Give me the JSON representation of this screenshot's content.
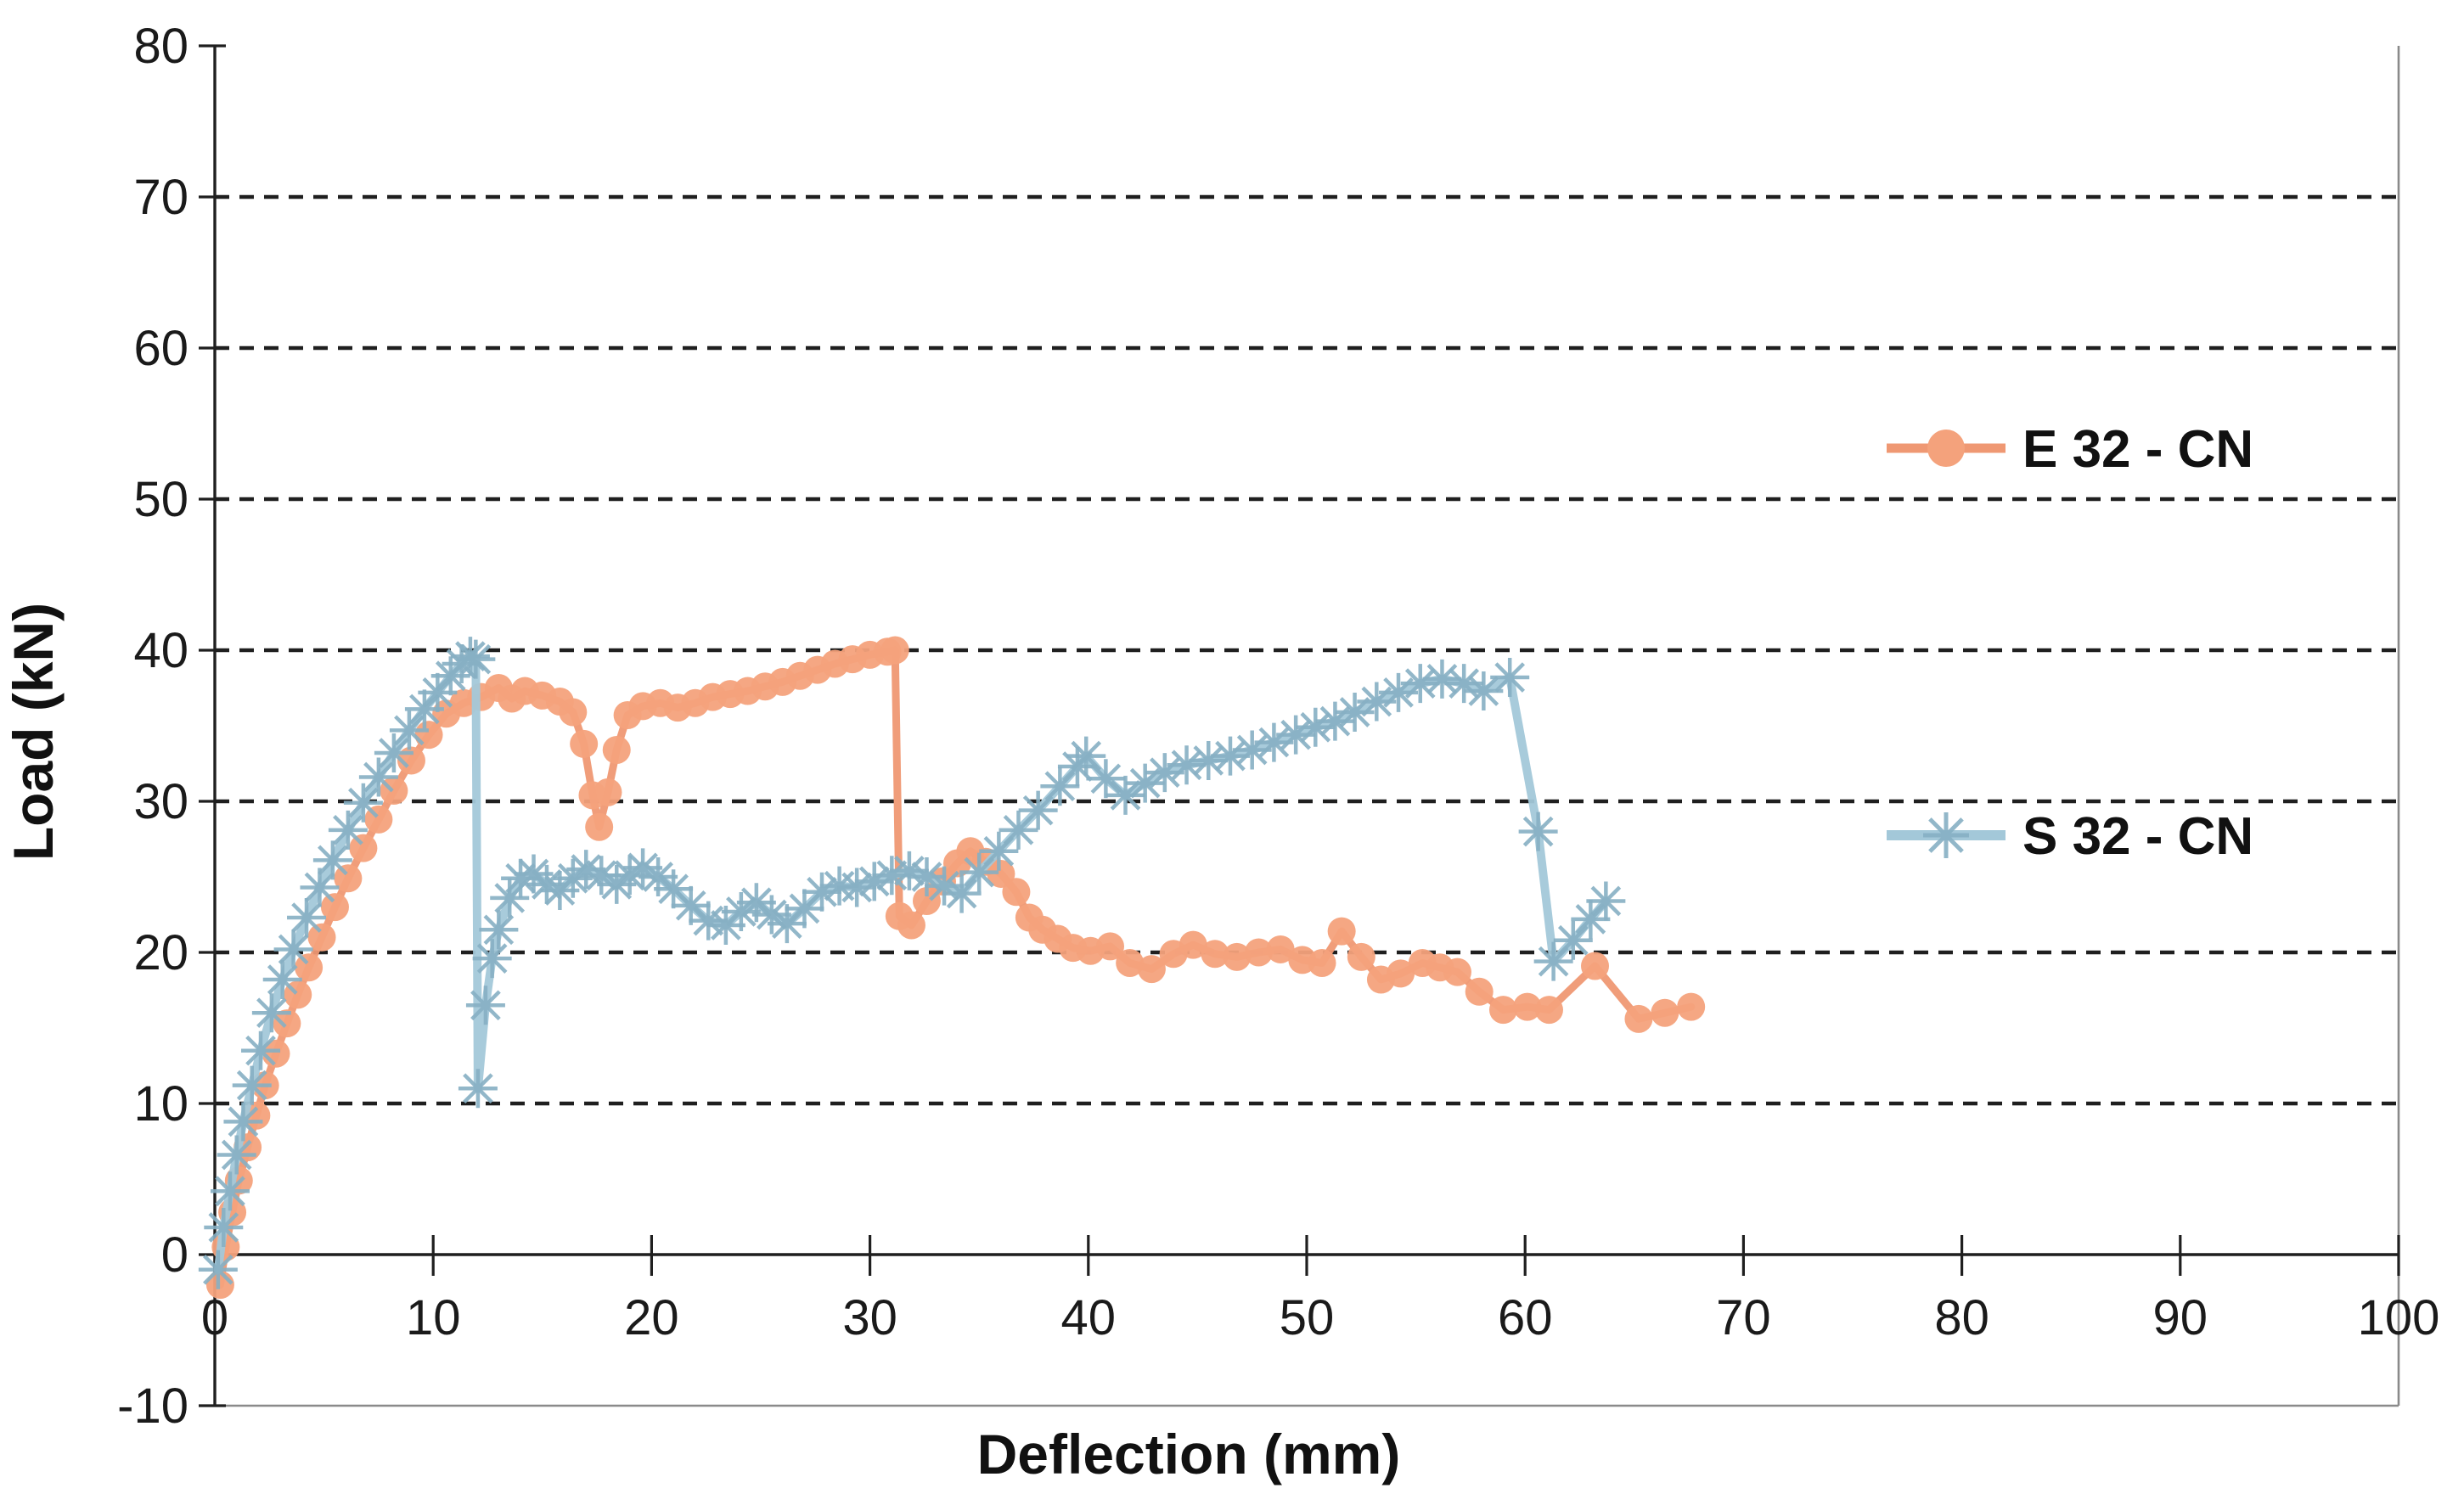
{
  "figure": {
    "background": "#ffffff"
  },
  "chart_data": {
    "type": "line",
    "title": "",
    "xlabel": "Deflection (mm)",
    "ylabel": "Load (kN)",
    "xlim": [
      0,
      100
    ],
    "ylim": [
      -10,
      80
    ],
    "x_ticks": [
      0,
      10,
      20,
      30,
      40,
      50,
      60,
      70,
      80,
      90,
      100
    ],
    "y_ticks": [
      -10,
      0,
      10,
      20,
      30,
      40,
      50,
      60,
      70,
      80
    ],
    "grid_y": [
      10,
      20,
      30,
      40,
      50,
      60,
      70
    ],
    "grid_style": "dashed",
    "legend_position": "right",
    "colors": {
      "axis": "#1f1f1f",
      "grid": "#1f1f1f",
      "border": "#8a8a8a",
      "text": "#111111"
    },
    "series": [
      {
        "name": "E 32 - CN",
        "marker": "circle",
        "line_color": "#EF9873",
        "marker_color": "#F4A27C",
        "points": [
          [
            0.25,
            -2.0
          ],
          [
            0.5,
            0.5
          ],
          [
            0.8,
            2.8
          ],
          [
            1.1,
            4.9
          ],
          [
            1.5,
            7.1
          ],
          [
            1.9,
            9.2
          ],
          [
            2.3,
            11.2
          ],
          [
            2.8,
            13.3
          ],
          [
            3.3,
            15.3
          ],
          [
            3.8,
            17.2
          ],
          [
            4.3,
            19.0
          ],
          [
            4.9,
            21.0
          ],
          [
            5.5,
            23.0
          ],
          [
            6.1,
            24.9
          ],
          [
            6.8,
            26.9
          ],
          [
            7.5,
            28.8
          ],
          [
            8.2,
            30.7
          ],
          [
            9.0,
            32.7
          ],
          [
            9.8,
            34.4
          ],
          [
            10.6,
            35.8
          ],
          [
            11.4,
            36.5
          ],
          [
            12.2,
            36.9
          ],
          [
            13.0,
            37.5
          ],
          [
            13.6,
            36.8
          ],
          [
            14.2,
            37.3
          ],
          [
            15.0,
            37.0
          ],
          [
            15.8,
            36.6
          ],
          [
            16.4,
            35.9
          ],
          [
            16.9,
            33.8
          ],
          [
            17.3,
            30.4
          ],
          [
            17.6,
            28.3
          ],
          [
            18.0,
            30.6
          ],
          [
            18.4,
            33.4
          ],
          [
            18.9,
            35.7
          ],
          [
            19.6,
            36.3
          ],
          [
            20.4,
            36.5
          ],
          [
            21.2,
            36.2
          ],
          [
            22.0,
            36.5
          ],
          [
            22.8,
            36.9
          ],
          [
            23.6,
            37.1
          ],
          [
            24.4,
            37.3
          ],
          [
            25.2,
            37.6
          ],
          [
            26.0,
            37.9
          ],
          [
            26.8,
            38.3
          ],
          [
            27.6,
            38.7
          ],
          [
            28.4,
            39.1
          ],
          [
            29.2,
            39.4
          ],
          [
            30.0,
            39.7
          ],
          [
            30.8,
            39.9
          ],
          [
            31.15,
            40.0
          ],
          [
            31.35,
            22.4
          ],
          [
            31.9,
            21.8
          ],
          [
            32.6,
            23.4
          ],
          [
            33.3,
            24.7
          ],
          [
            34.0,
            25.9
          ],
          [
            34.6,
            26.7
          ],
          [
            35.3,
            26.0
          ],
          [
            36.0,
            25.2
          ],
          [
            36.7,
            24.0
          ],
          [
            37.3,
            22.3
          ],
          [
            37.9,
            21.5
          ],
          [
            38.6,
            20.9
          ],
          [
            39.3,
            20.3
          ],
          [
            40.1,
            20.1
          ],
          [
            41.0,
            20.4
          ],
          [
            41.9,
            19.3
          ],
          [
            42.9,
            18.9
          ],
          [
            43.9,
            19.9
          ],
          [
            44.8,
            20.5
          ],
          [
            45.8,
            19.9
          ],
          [
            46.8,
            19.7
          ],
          [
            47.8,
            20.0
          ],
          [
            48.8,
            20.2
          ],
          [
            49.8,
            19.5
          ],
          [
            50.7,
            19.3
          ],
          [
            51.6,
            21.4
          ],
          [
            52.5,
            19.7
          ],
          [
            53.4,
            18.2
          ],
          [
            54.3,
            18.6
          ],
          [
            55.3,
            19.3
          ],
          [
            56.1,
            19.0
          ],
          [
            56.9,
            18.7
          ],
          [
            57.9,
            17.4
          ],
          [
            59.0,
            16.2
          ],
          [
            60.1,
            16.4
          ],
          [
            61.1,
            16.2
          ],
          [
            63.2,
            19.1
          ],
          [
            65.2,
            15.6
          ],
          [
            66.4,
            16.0
          ],
          [
            67.6,
            16.4
          ]
        ]
      },
      {
        "name": "S 32 - CN",
        "marker": "asterisk",
        "line_color": "#A3C8D9",
        "marker_color": "#87B0C4",
        "points": [
          [
            0.15,
            -1.0
          ],
          [
            0.4,
            1.8
          ],
          [
            0.7,
            4.2
          ],
          [
            1.0,
            6.6
          ],
          [
            1.3,
            8.8
          ],
          [
            1.7,
            11.2
          ],
          [
            2.1,
            13.5
          ],
          [
            2.6,
            16.0
          ],
          [
            3.1,
            18.2
          ],
          [
            3.6,
            20.2
          ],
          [
            4.2,
            22.3
          ],
          [
            4.8,
            24.3
          ],
          [
            5.4,
            26.1
          ],
          [
            6.1,
            28.1
          ],
          [
            6.8,
            29.9
          ],
          [
            7.5,
            31.6
          ],
          [
            8.2,
            33.2
          ],
          [
            8.9,
            34.7
          ],
          [
            9.6,
            36.1
          ],
          [
            10.2,
            37.2
          ],
          [
            10.8,
            38.3
          ],
          [
            11.3,
            39.1
          ],
          [
            11.7,
            39.6
          ],
          [
            11.95,
            39.4
          ],
          [
            12.05,
            11.0
          ],
          [
            12.4,
            16.5
          ],
          [
            12.7,
            19.6
          ],
          [
            13.0,
            21.5
          ],
          [
            13.5,
            23.6
          ],
          [
            14.0,
            24.9
          ],
          [
            14.6,
            25.2
          ],
          [
            15.2,
            24.5
          ],
          [
            15.8,
            24.1
          ],
          [
            16.4,
            24.9
          ],
          [
            17.0,
            25.5
          ],
          [
            17.7,
            25.1
          ],
          [
            18.4,
            24.5
          ],
          [
            19.0,
            25.1
          ],
          [
            19.6,
            25.6
          ],
          [
            20.3,
            25.0
          ],
          [
            21.0,
            24.2
          ],
          [
            21.8,
            23.1
          ],
          [
            22.6,
            22.1
          ],
          [
            23.4,
            21.8
          ],
          [
            24.1,
            22.7
          ],
          [
            24.8,
            23.3
          ],
          [
            25.5,
            22.5
          ],
          [
            26.2,
            21.9
          ],
          [
            27.0,
            22.9
          ],
          [
            27.8,
            24.0
          ],
          [
            28.6,
            24.4
          ],
          [
            29.4,
            24.3
          ],
          [
            30.2,
            24.7
          ],
          [
            31.0,
            25.1
          ],
          [
            31.8,
            25.4
          ],
          [
            32.6,
            25.0
          ],
          [
            33.4,
            24.4
          ],
          [
            34.2,
            23.9
          ],
          [
            35.0,
            25.3
          ],
          [
            35.9,
            26.7
          ],
          [
            36.8,
            28.1
          ],
          [
            37.7,
            29.4
          ],
          [
            38.7,
            31.0
          ],
          [
            39.5,
            32.3
          ],
          [
            39.9,
            33.0
          ],
          [
            40.8,
            31.5
          ],
          [
            41.7,
            30.4
          ],
          [
            42.6,
            31.2
          ],
          [
            43.5,
            31.9
          ],
          [
            44.5,
            32.4
          ],
          [
            45.5,
            32.7
          ],
          [
            46.5,
            33.0
          ],
          [
            47.5,
            33.4
          ],
          [
            48.5,
            33.9
          ],
          [
            49.5,
            34.4
          ],
          [
            50.4,
            34.9
          ],
          [
            51.3,
            35.3
          ],
          [
            52.2,
            35.9
          ],
          [
            53.2,
            36.6
          ],
          [
            54.2,
            37.2
          ],
          [
            55.2,
            37.8
          ],
          [
            56.2,
            38.1
          ],
          [
            57.2,
            37.8
          ],
          [
            58.1,
            37.3
          ],
          [
            59.3,
            38.2
          ],
          [
            60.6,
            28.0
          ],
          [
            61.3,
            19.4
          ],
          [
            62.2,
            20.8
          ],
          [
            63.0,
            22.2
          ],
          [
            63.7,
            23.4
          ]
        ]
      }
    ]
  }
}
